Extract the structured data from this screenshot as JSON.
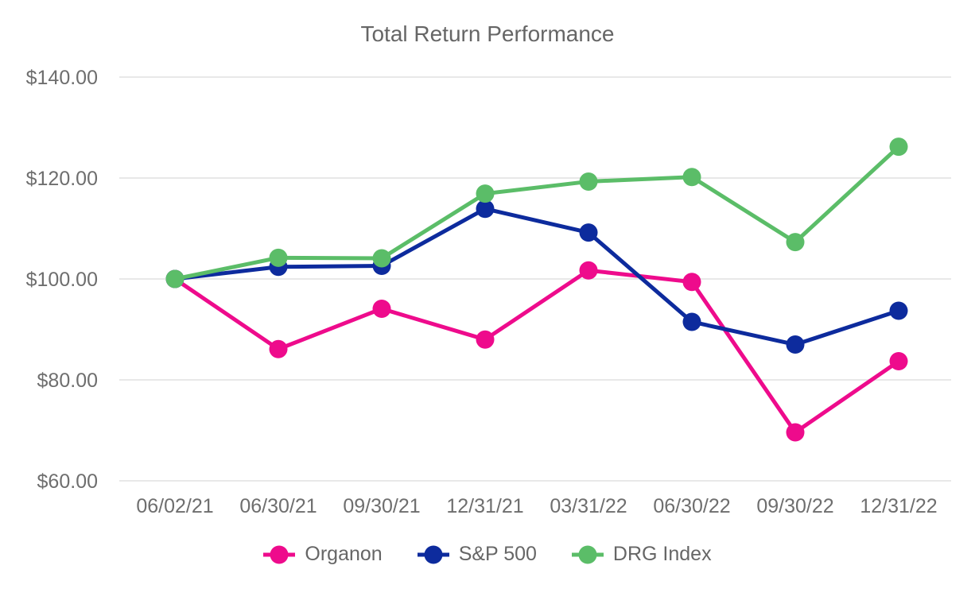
{
  "chart_data": {
    "type": "line",
    "title": "Total Return Performance",
    "categories": [
      "06/02/21",
      "06/30/21",
      "09/30/21",
      "12/31/21",
      "03/31/22",
      "06/30/22",
      "09/30/22",
      "12/31/22"
    ],
    "series": [
      {
        "name": "Organon",
        "color": "#EE0B8C",
        "values": [
          100.0,
          86.1,
          94.1,
          88.0,
          101.7,
          99.4,
          69.6,
          83.7
        ]
      },
      {
        "name": "S&P 500",
        "color": "#0D2B9D",
        "values": [
          100.0,
          102.4,
          102.6,
          113.9,
          109.2,
          91.5,
          87.0,
          93.7
        ]
      },
      {
        "name": "DRG Index",
        "color": "#5BBD68",
        "values": [
          100.0,
          104.2,
          104.1,
          116.9,
          119.3,
          120.2,
          107.3,
          126.2
        ]
      }
    ],
    "y_ticks": [
      {
        "label": "$140.00",
        "value": 140
      },
      {
        "label": "$120.00",
        "value": 120
      },
      {
        "label": "$100.00",
        "value": 100
      },
      {
        "label": "$80.00",
        "value": 80
      },
      {
        "label": "$60.00",
        "value": 60
      }
    ],
    "ylim": [
      60,
      140
    ],
    "xlabel": "",
    "ylabel": "",
    "grid": true,
    "legend_position": "bottom",
    "marker": "circle",
    "colors": {
      "text": "#6e6e6e",
      "title": "#666666",
      "gridline": "#e8e8e8",
      "background": "#ffffff"
    }
  }
}
